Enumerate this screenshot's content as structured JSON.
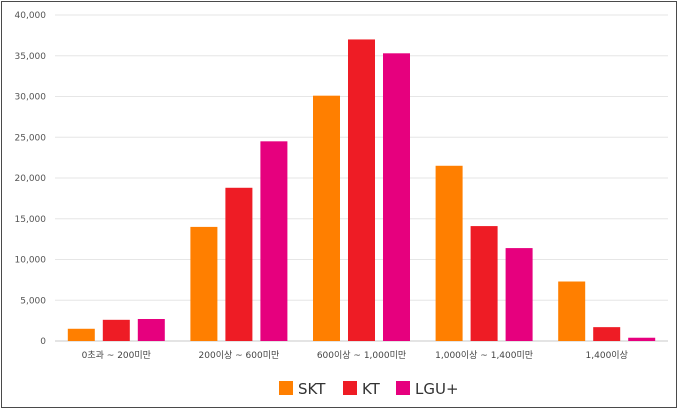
{
  "chart_data": {
    "type": "bar",
    "categories": [
      "0초과 ~ 200미만",
      "200이상 ~ 600미만",
      "600이상 ~ 1,000미만",
      "1,000이상 ~ 1,400미만",
      "1,400이상"
    ],
    "series": [
      {
        "name": "SKT",
        "color": "#ff7f00",
        "values": [
          1500,
          14000,
          30100,
          21500,
          7300
        ]
      },
      {
        "name": "KT",
        "color": "#ee1c25",
        "values": [
          2600,
          18800,
          37000,
          14100,
          1700
        ]
      },
      {
        "name": "LGU+",
        "color": "#e6007e",
        "values": [
          2700,
          24500,
          35300,
          11400,
          400
        ]
      }
    ],
    "yticks": [
      "0",
      "5,000",
      "10,000",
      "15,000",
      "20,000",
      "25,000",
      "30,000",
      "35,000",
      "40,000"
    ],
    "ylim": [
      0,
      40000
    ],
    "grid": true,
    "legend": "bottom-center"
  }
}
